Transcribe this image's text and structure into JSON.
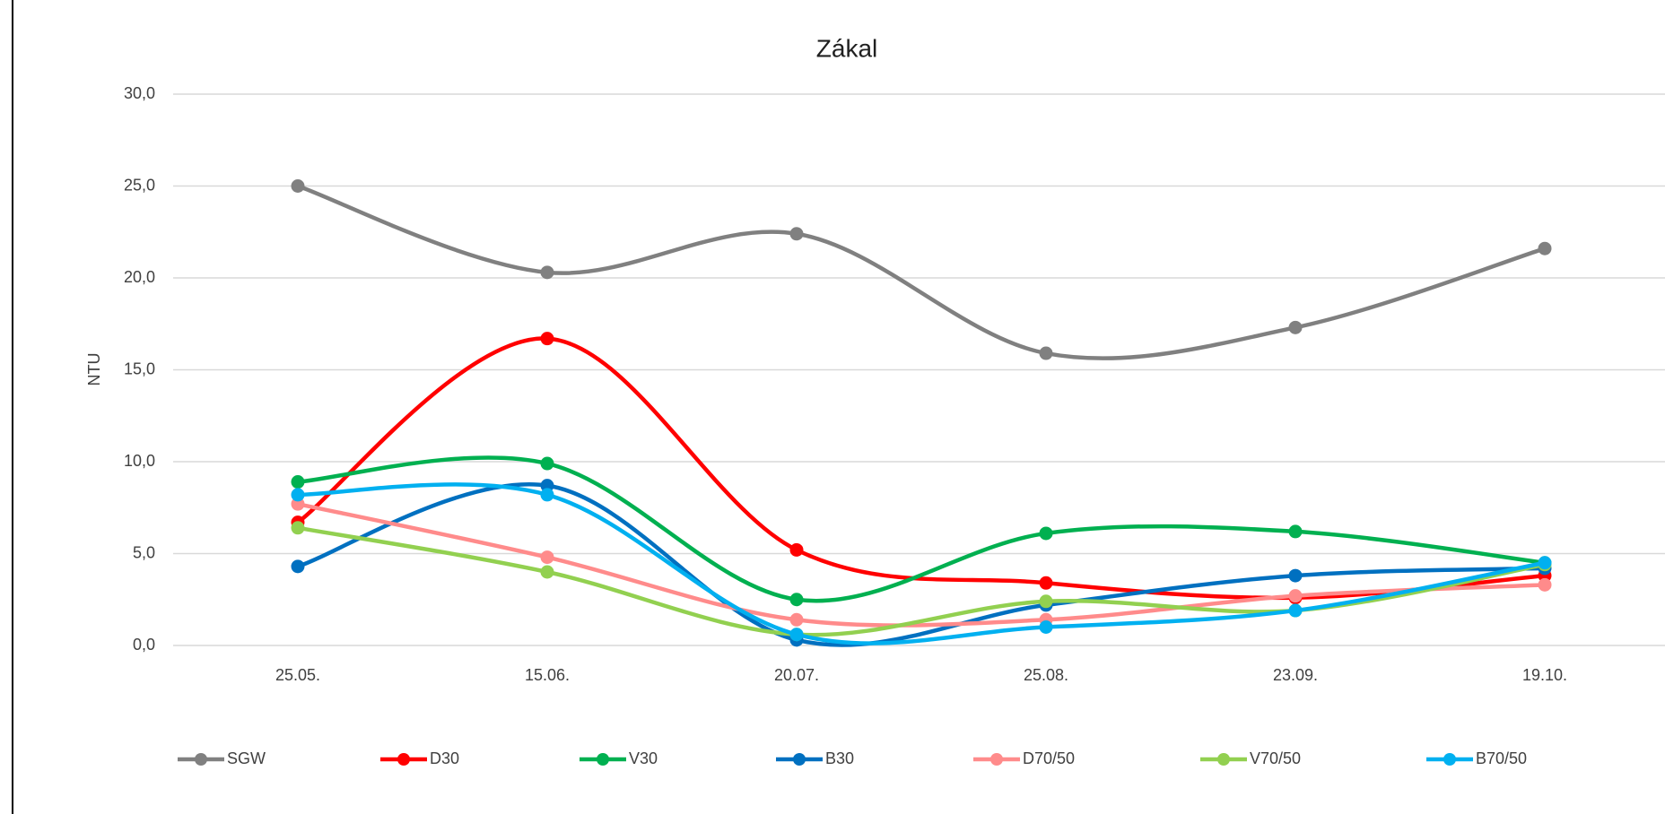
{
  "chart_data": {
    "type": "line",
    "title": "Zákal",
    "y_label": "NTU",
    "categories": [
      "25.05.",
      "15.06.",
      "20.07.",
      "25.08.",
      "23.09.",
      "19.10."
    ],
    "ylim": [
      0,
      30
    ],
    "yticks": [
      {
        "value": 0,
        "label": "0,0"
      },
      {
        "value": 5,
        "label": "5,0"
      },
      {
        "value": 10,
        "label": "10,0"
      },
      {
        "value": 15,
        "label": "15,0"
      },
      {
        "value": 20,
        "label": "20,0"
      },
      {
        "value": 25,
        "label": "25,0"
      },
      {
        "value": 30,
        "label": "30,0"
      }
    ],
    "grid": true,
    "smooth": true,
    "legend": "bottom",
    "series": [
      {
        "name": "SGW",
        "color": "#808080",
        "values": [
          25.0,
          20.3,
          22.4,
          15.9,
          17.3,
          21.6
        ]
      },
      {
        "name": "D30",
        "color": "#ff0000",
        "values": [
          6.7,
          16.7,
          5.2,
          3.4,
          2.6,
          3.8
        ]
      },
      {
        "name": "V30",
        "color": "#00b050",
        "values": [
          8.9,
          9.9,
          2.5,
          6.1,
          6.2,
          4.5
        ]
      },
      {
        "name": "B30",
        "color": "#0070c0",
        "values": [
          4.3,
          8.7,
          0.3,
          2.2,
          3.8,
          4.2
        ]
      },
      {
        "name": "D70/50",
        "color": "#ff8b8b",
        "values": [
          7.7,
          4.8,
          1.4,
          1.4,
          2.7,
          3.3
        ]
      },
      {
        "name": "V70/50",
        "color": "#92d050",
        "values": [
          6.4,
          4.0,
          0.6,
          2.4,
          1.9,
          4.4
        ]
      },
      {
        "name": "B70/50",
        "color": "#00b0f0",
        "values": [
          8.2,
          8.2,
          0.6,
          1.0,
          1.9,
          4.5
        ]
      }
    ]
  }
}
